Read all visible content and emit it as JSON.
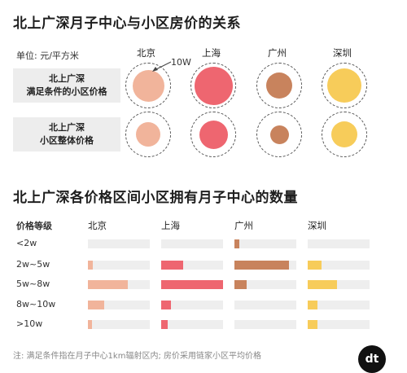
{
  "top_title": "北上广深月子中心与小区房价的关系",
  "unit": "单位: 元/平方米",
  "annotation_10w": "10W",
  "cities": [
    {
      "name": "北京",
      "color": "#f1b49b"
    },
    {
      "name": "上海",
      "color": "#ee6670"
    },
    {
      "name": "广州",
      "color": "#c8835d"
    },
    {
      "name": "深圳",
      "color": "#f7cc5a"
    }
  ],
  "price_rows": [
    {
      "line1": "北上广深",
      "line2": "满足条件的小区价格"
    },
    {
      "line1": "北上广深",
      "line2": "小区整体价格"
    }
  ],
  "second_title": "北上广深各价格区间小区拥有月子中心的数量",
  "tier_header": "价格等级",
  "tiers": [
    "<2w",
    "2w~5w",
    "5w~8w",
    "8w~10w",
    ">10w"
  ],
  "footnote": "注: 满足条件指在月子中心1km辐射区内; 房价采用链家小区平均价格",
  "logo_text": "dt",
  "chart_data": [
    {
      "type": "bubble",
      "title": "北上广深月子中心与小区房价的关系",
      "unit": "单位: 元/平方米",
      "reference_circle": "10W",
      "categories": [
        "北京",
        "上海",
        "广州",
        "深圳"
      ],
      "series": [
        {
          "name": "北上广深 满足条件的小区价格",
          "values": [
            0.75,
            0.9,
            0.62,
            0.8
          ]
        },
        {
          "name": "北上广深 小区整体价格",
          "values": [
            0.57,
            0.68,
            0.45,
            0.62
          ]
        }
      ]
    },
    {
      "type": "bar",
      "title": "北上广深各价格区间小区拥有月子中心的数量",
      "categories": [
        "<2w",
        "2w~5w",
        "5w~8w",
        "8w~10w",
        ">10w"
      ],
      "series": [
        {
          "name": "北京",
          "values": [
            0,
            0.08,
            0.65,
            0.26,
            0.06
          ]
        },
        {
          "name": "上海",
          "values": [
            0,
            0.35,
            1.0,
            0.16,
            0.1
          ]
        },
        {
          "name": "广州",
          "values": [
            0.08,
            0.88,
            0.2,
            0,
            0
          ]
        },
        {
          "name": "深圳",
          "values": [
            0,
            0.22,
            0.48,
            0.16,
            0.16
          ]
        }
      ],
      "xlim": [
        0,
        1
      ]
    }
  ]
}
